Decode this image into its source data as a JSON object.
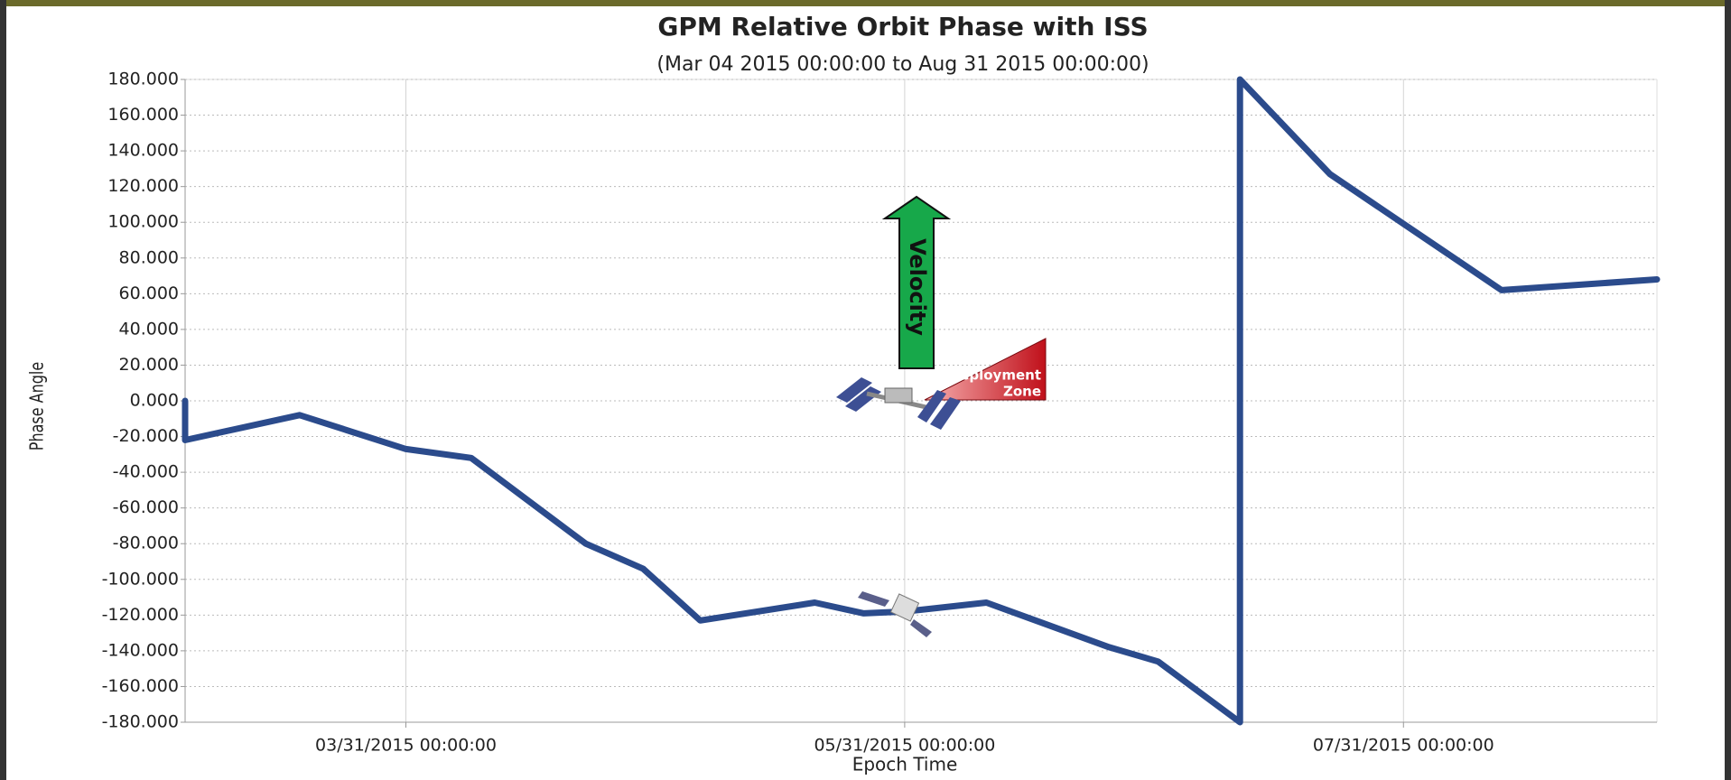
{
  "chart_data": {
    "type": "line",
    "title": "GPM Relative Orbit Phase with ISS",
    "subtitle": "(Mar 04 2015 00:00:00 to Aug 31 2015 00:00:00)",
    "x_label": "Epoch Time",
    "y_label": "Phase Angle",
    "annotations": {
      "velocity": "Velocity",
      "deployment_zone": [
        "Deployment",
        "Zone"
      ]
    },
    "x": [
      "2015-03-04",
      "2015-03-04",
      "2015-03-18",
      "2015-03-31",
      "2015-04-08",
      "2015-04-22",
      "2015-04-29",
      "2015-05-06",
      "2015-05-20",
      "2015-05-26",
      "2015-05-31",
      "2015-06-10",
      "2015-06-25",
      "2015-07-01",
      "2015-07-11",
      "2015-07-11",
      "2015-07-22",
      "2015-08-12",
      "2015-08-31"
    ],
    "series": [
      {
        "color": "#2b4b8c",
        "values": [
          0,
          -22,
          -8,
          -27,
          -32,
          -80,
          -94,
          -123,
          -113,
          -119,
          -118,
          -113,
          -138,
          -146,
          -180,
          180,
          127,
          62,
          68
        ]
      }
    ],
    "xlim": [
      "2015-03-04",
      "2015-08-31"
    ],
    "xticks": [
      {
        "value": "2015-03-31",
        "label": "03/31/2015 00:00:00"
      },
      {
        "value": "2015-05-31",
        "label": "05/31/2015 00:00:00"
      },
      {
        "value": "2015-07-31",
        "label": "07/31/2015 00:00:00"
      }
    ],
    "ylim": [
      -180,
      180
    ],
    "yticks": [
      {
        "value": -180,
        "label": "-180.000"
      },
      {
        "value": -160,
        "label": "-160.000"
      },
      {
        "value": -140,
        "label": "-140.000"
      },
      {
        "value": -120,
        "label": "-120.000"
      },
      {
        "value": -100,
        "label": "-100.000"
      },
      {
        "value": -80,
        "label": "-80.000"
      },
      {
        "value": -60,
        "label": "-60.000"
      },
      {
        "value": -40,
        "label": "-40.000"
      },
      {
        "value": -20,
        "label": "-20.000"
      },
      {
        "value": 0,
        "label": "0.000"
      },
      {
        "value": 20,
        "label": "20.000"
      },
      {
        "value": 40,
        "label": "40.000"
      },
      {
        "value": 60,
        "label": "60.000"
      },
      {
        "value": 80,
        "label": "80.000"
      },
      {
        "value": 100,
        "label": "100.000"
      },
      {
        "value": 120,
        "label": "120.000"
      },
      {
        "value": 140,
        "label": "140.000"
      },
      {
        "value": 160,
        "label": "160.000"
      },
      {
        "value": 180,
        "label": "180.000"
      }
    ],
    "grid": true
  }
}
